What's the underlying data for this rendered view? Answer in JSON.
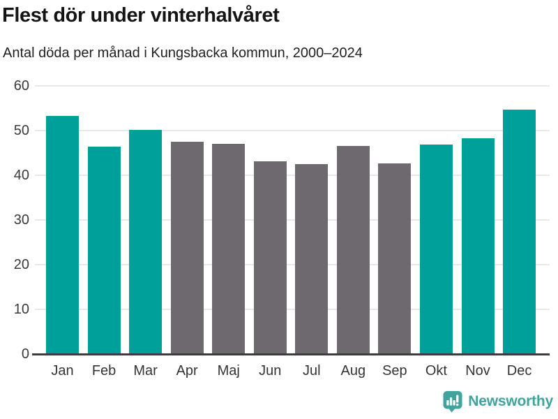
{
  "header": {
    "title": "Flest dör under vinterhalvåret",
    "subtitle": "Antal döda per månad i Kungsbacka kommun, 2000–2024"
  },
  "chart_data": {
    "type": "bar",
    "title": "Flest dör under vinterhalvåret",
    "subtitle": "Antal döda per månad i Kungsbacka kommun, 2000–2024",
    "categories": [
      "Jan",
      "Feb",
      "Mar",
      "Apr",
      "Maj",
      "Jun",
      "Jul",
      "Aug",
      "Sep",
      "Okt",
      "Nov",
      "Dec"
    ],
    "values": [
      53.2,
      46.2,
      50.0,
      47.3,
      46.9,
      42.9,
      42.3,
      46.4,
      42.5,
      46.7,
      48.2,
      54.5
    ],
    "highlighted": [
      true,
      true,
      true,
      false,
      false,
      false,
      false,
      false,
      false,
      true,
      true,
      true
    ],
    "colors": {
      "highlight": "#00a09a",
      "default": "#6e696e",
      "gridline": "#e8e8e8",
      "axis_line": "#3d3d3d",
      "tick_text": "#3a3a3a"
    },
    "xlabel": "",
    "ylabel": "",
    "ylim": [
      0,
      60
    ],
    "yticks": [
      0,
      10,
      20,
      30,
      40,
      50,
      60
    ],
    "grid": true,
    "legend_position": "none"
  },
  "footer": {
    "brand": "Newsworthy",
    "brand_color": "#40a39d",
    "logo_icon": "newsworthy-speech-bubble-chart-icon"
  }
}
